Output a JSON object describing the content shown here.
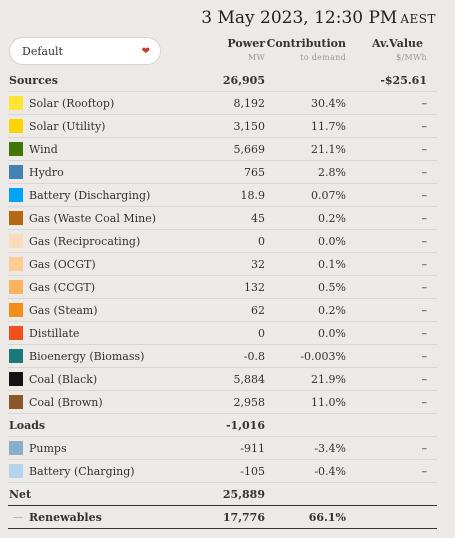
{
  "header": {
    "date": "3 May 2023, 12:30 PM",
    "timezone": "AEST"
  },
  "dropdown": {
    "value": "Default",
    "chevron_icon": "chevron-down-icon"
  },
  "columns": {
    "power": "Power",
    "power_unit": "MW",
    "contribution": "Contribution",
    "contribution_sub": "to demand",
    "av_value": "Av.Value",
    "av_value_unit": "$/MWh"
  },
  "sources": {
    "label": "Sources",
    "power": "26,905",
    "contribution": "",
    "av_value": "-$25.61",
    "items": [
      {
        "name": "Solar (Rooftop)",
        "color": "#fee633",
        "power": "8,192",
        "contribution": "30.4%",
        "av_value": "–"
      },
      {
        "name": "Solar (Utility)",
        "color": "#fed500",
        "power": "3,150",
        "contribution": "11.7%",
        "av_value": "–"
      },
      {
        "name": "Wind",
        "color": "#417505",
        "power": "5,669",
        "contribution": "21.1%",
        "av_value": "–"
      },
      {
        "name": "Hydro",
        "color": "#4582b4",
        "power": "765",
        "contribution": "2.8%",
        "av_value": "–"
      },
      {
        "name": "Battery (Discharging)",
        "color": "#00a2fa",
        "power": "18.9",
        "contribution": "0.07%",
        "av_value": "–"
      },
      {
        "name": "Gas (Waste Coal Mine)",
        "color": "#b46813",
        "power": "45",
        "contribution": "0.2%",
        "av_value": "–"
      },
      {
        "name": "Gas (Reciprocating)",
        "color": "#f9dcbc",
        "power": "0",
        "contribution": "0.0%",
        "av_value": "–"
      },
      {
        "name": "Gas (OCGT)",
        "color": "#ffcd96",
        "power": "32",
        "contribution": "0.1%",
        "av_value": "–"
      },
      {
        "name": "Gas (CCGT)",
        "color": "#fdb462",
        "power": "132",
        "contribution": "0.5%",
        "av_value": "–"
      },
      {
        "name": "Gas (Steam)",
        "color": "#f48e1b",
        "power": "62",
        "contribution": "0.2%",
        "av_value": "–"
      },
      {
        "name": "Distillate",
        "color": "#f35020",
        "power": "0",
        "contribution": "0.0%",
        "av_value": "–"
      },
      {
        "name": "Bioenergy (Biomass)",
        "color": "#1d7a7a",
        "power": "-0.8",
        "contribution": "-0.003%",
        "av_value": "–"
      },
      {
        "name": "Coal (Black)",
        "color": "#121212",
        "power": "5,884",
        "contribution": "21.9%",
        "av_value": "–"
      },
      {
        "name": "Coal (Brown)",
        "color": "#8b572a",
        "power": "2,958",
        "contribution": "11.0%",
        "av_value": "–"
      }
    ]
  },
  "loads": {
    "label": "Loads",
    "power": "-1,016",
    "contribution": "",
    "av_value": "",
    "items": [
      {
        "name": "Pumps",
        "color": "#88afd0",
        "power": "-911",
        "contribution": "-3.4%",
        "av_value": "–"
      },
      {
        "name": "Battery (Charging)",
        "color": "#b3d4e9",
        "power": "-105",
        "contribution": "-0.4%",
        "av_value": "–"
      }
    ]
  },
  "net": {
    "label": "Net",
    "power": "25,889",
    "contribution": "",
    "av_value": ""
  },
  "renewables": {
    "label": "Renewables",
    "power": "17,776",
    "contribution": "66.1%",
    "av_value": ""
  }
}
